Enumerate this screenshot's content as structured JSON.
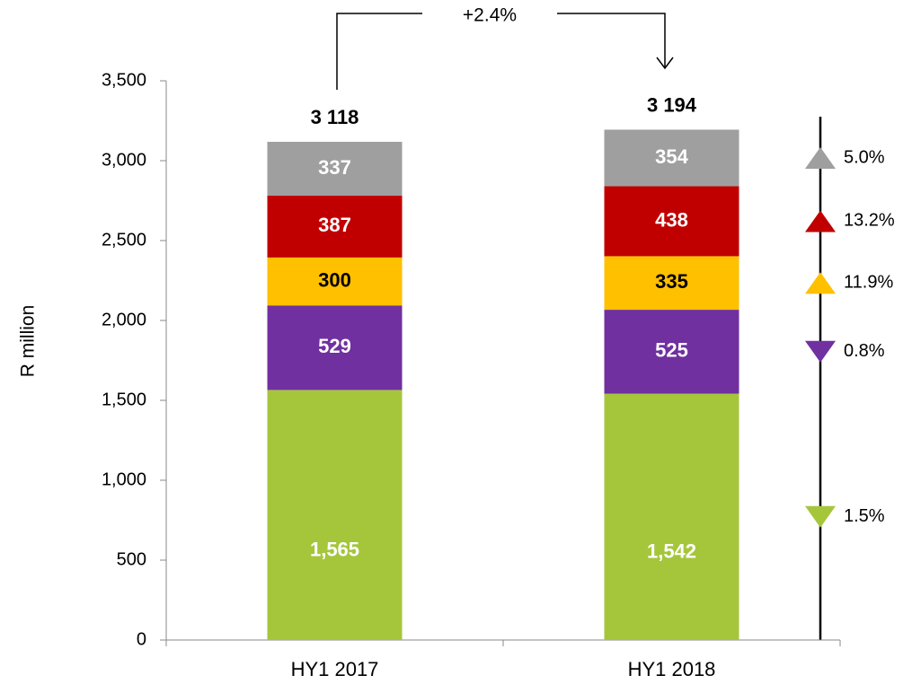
{
  "chart_data": {
    "type": "stacked_bar",
    "y_label": "R million",
    "categories": [
      "HY1 2017",
      "HY1 2018"
    ],
    "ylim": [
      0,
      3500
    ],
    "yticks": [
      0,
      500,
      {
        "value": 1000,
        "label": "1,000"
      },
      {
        "value": 1500,
        "label": "1,500"
      },
      {
        "value": 2000,
        "label": "2,000"
      },
      {
        "value": 2500,
        "label": "2,500"
      },
      {
        "value": 3000,
        "label": "3,000"
      },
      {
        "value": 3500,
        "label": "3,500"
      }
    ],
    "series": [
      {
        "color": "#a5c63b",
        "label_color": "#ffffff",
        "values": [
          1565,
          1542
        ],
        "value_labels": [
          "1,565",
          "1,542"
        ],
        "change": 1.5,
        "change_label": "1.5%",
        "change_direction": "down"
      },
      {
        "color": "#7030a0",
        "label_color": "#ffffff",
        "values": [
          529,
          525
        ],
        "change": 0.8,
        "change_label": "0.8%",
        "change_direction": "down"
      },
      {
        "color": "#ffc000",
        "label_color": "#000000",
        "values": [
          300,
          335
        ],
        "change": 11.9,
        "change_label": "11.9%",
        "change_direction": "up"
      },
      {
        "color": "#c00000",
        "label_color": "#ffffff",
        "values": [
          387,
          438
        ],
        "change": 13.2,
        "change_label": "13.2%",
        "change_direction": "up"
      },
      {
        "color": "#a09fa0",
        "label_color": "#ffffff",
        "values": [
          337,
          354
        ],
        "change": 5.0,
        "change_label": "5.0%",
        "change_direction": "up"
      }
    ],
    "totals": {
      "values": [
        3118,
        3194
      ],
      "value_labels": [
        "3 118",
        "3 194"
      ]
    },
    "overall_change": {
      "value": 2.4,
      "label": "+2.4%"
    }
  }
}
